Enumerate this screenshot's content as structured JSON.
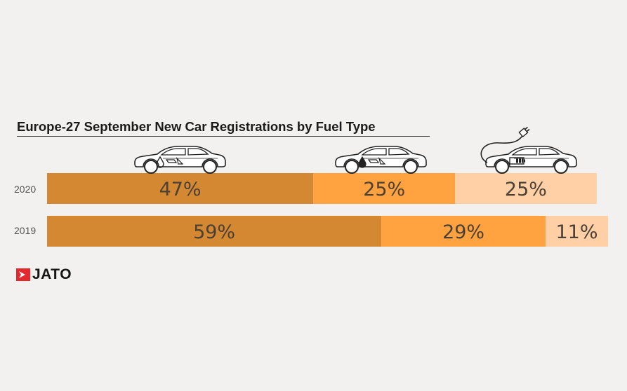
{
  "chart_data": {
    "type": "bar",
    "stacked": true,
    "orientation": "horizontal",
    "title": "Europe-27 September New Car Registrations by Fuel Type",
    "categories": [
      "2020",
      "2019"
    ],
    "series": [
      {
        "values": [
          47,
          59
        ],
        "color": "#d48832"
      },
      {
        "values": [
          25,
          29
        ],
        "color": "#ffa23f"
      },
      {
        "values": [
          25,
          11
        ],
        "color": "#ffcfa6"
      }
    ],
    "labels": [
      [
        "47%",
        "25%",
        "25%"
      ],
      [
        "59%",
        "29%",
        "11%"
      ]
    ],
    "legend_icons": [
      "petrol-car-icon",
      "diesel-car-icon",
      "electric-car-icon"
    ]
  },
  "brand": {
    "logo_text": "JATO",
    "logo_color": "#e3282f"
  }
}
